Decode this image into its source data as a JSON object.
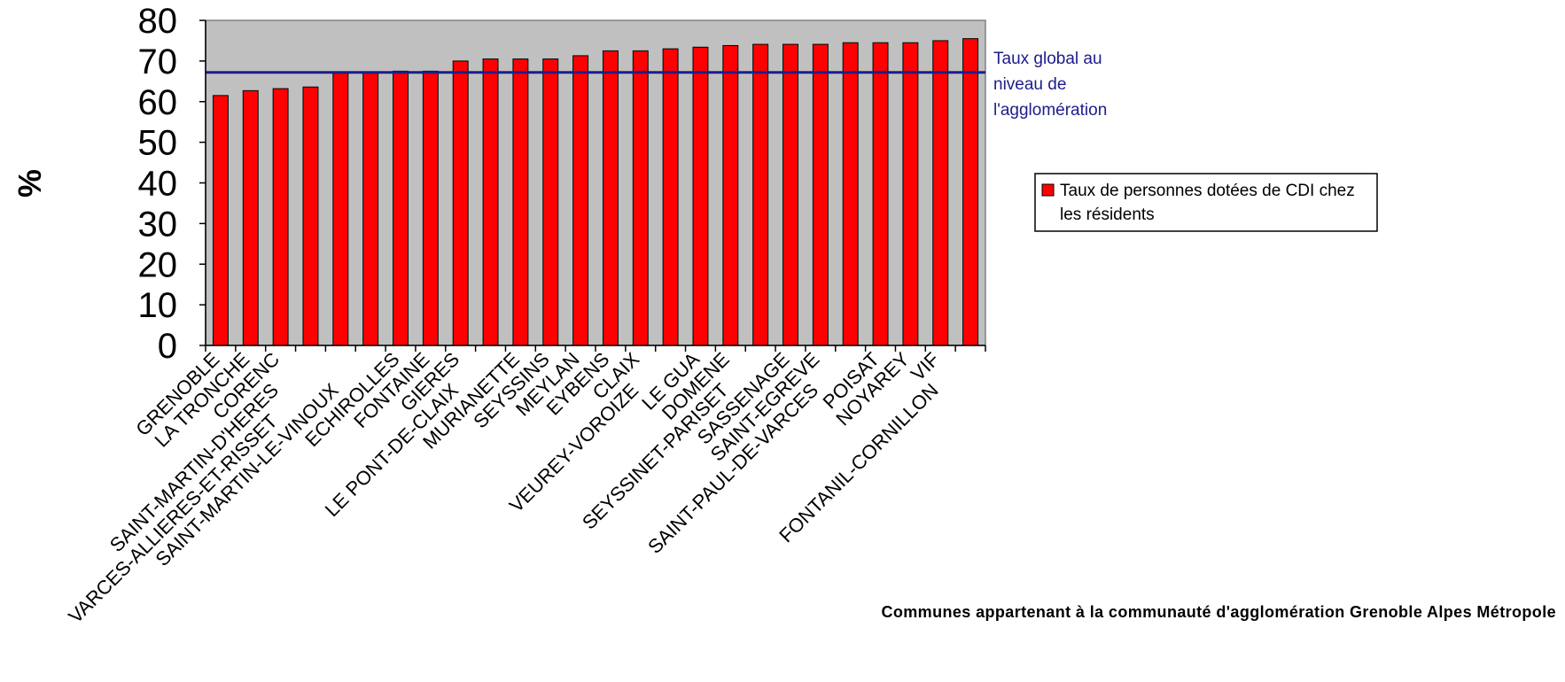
{
  "chart_data": {
    "type": "bar",
    "ylabel": "%",
    "xlabel": "Communes appartenant à la communauté d'agglomération Grenoble Alpes Métropole",
    "ylim": [
      0,
      80
    ],
    "yticks": [
      0,
      10,
      20,
      30,
      40,
      50,
      60,
      70,
      80
    ],
    "grid": false,
    "plot_background": "#c0c0c0",
    "categories": [
      "GRENOBLE",
      "LA TRONCHE",
      "CORENC",
      "SAINT-MARTIN-D'HERES",
      "VARCES-ALLIERES-ET-RISSET",
      "SAINT-MARTIN-LE-VINOUX",
      "ECHIROLLES",
      "FONTAINE",
      "GIERES",
      "LE PONT-DE-CLAIX",
      "MURIANETTE",
      "SEYSSINS",
      "MEYLAN",
      "EYBENS",
      "CLAIX",
      "VEUREY-VOROIZE",
      "LE GUA",
      "DOMENE",
      "SEYSSINET-PARISET",
      "SASSENAGE",
      "SAINT-EGREVE",
      "SAINT-PAUL-DE-VARCES",
      "POISAT",
      "NOYAREY",
      "VIF",
      "FONTANIL-CORNILLON"
    ],
    "label_rows": [
      0,
      0,
      0,
      1,
      2,
      1,
      0,
      0,
      0,
      1,
      0,
      0,
      0,
      0,
      0,
      1,
      0,
      0,
      1,
      0,
      0,
      1,
      0,
      0,
      0,
      1
    ],
    "series": [
      {
        "name": "Taux de personnes dotées de CDI chez les résidents",
        "color": "#ff0000",
        "values": [
          61.5,
          62.7,
          63.2,
          63.6,
          67.0,
          67.0,
          67.5,
          67.5,
          70.0,
          70.5,
          70.5,
          70.5,
          71.3,
          72.5,
          72.5,
          73.0,
          73.4,
          73.8,
          74.1,
          74.1,
          74.1,
          74.5,
          74.5,
          74.5,
          75.0,
          75.5
        ]
      }
    ],
    "reference_line": {
      "value": 67.2,
      "color": "#1c1c8c",
      "label_lines": [
        "Taux global au",
        "niveau de",
        "l'agglomération"
      ]
    },
    "legend": {
      "position": "right",
      "label_lines": [
        "Taux de personnes dotées de CDI chez",
        "les résidents"
      ]
    }
  }
}
